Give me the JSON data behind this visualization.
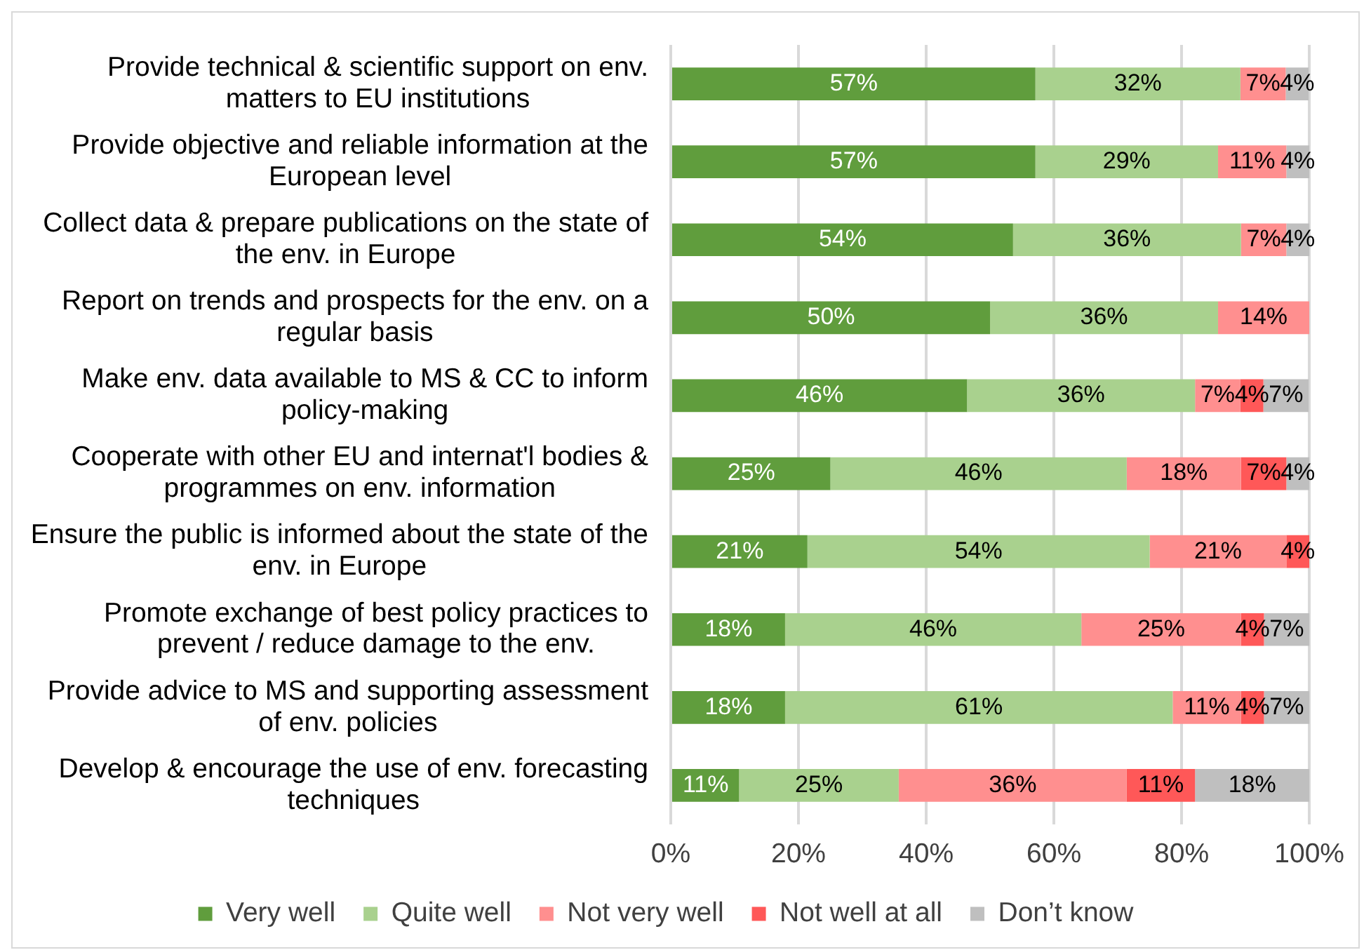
{
  "chart_data": {
    "type": "bar",
    "orientation": "horizontal",
    "stacked": true,
    "categories": [
      "Provide technical & scientific support on env. matters to EU institutions",
      "Provide objective and reliable information at the European level",
      "Collect data & prepare publications on the state of the env. in Europe",
      "Report on trends and prospects for the env. on a regular basis",
      "Make env. data available to MS & CC to inform policy-making",
      "Cooperate with other EU and internat'l bodies & programmes on env. information",
      "Ensure the public is informed about the state of the env. in Europe",
      "Promote exchange of best policy practices to prevent / reduce damage to the env.",
      "Provide advice to MS and supporting assessment of env. policies",
      "Develop & encourage the use of env. forecasting techniques"
    ],
    "series": [
      {
        "name": "Very well",
        "color": "#609d3d",
        "values": [
          57.1,
          57.1,
          53.6,
          50,
          46.4,
          25,
          21.4,
          17.9,
          17.9,
          10.7
        ],
        "value_labels": [
          "57%",
          "57%",
          "54%",
          "50%",
          "46%",
          "25%",
          "21%",
          "18%",
          "18%",
          "11%"
        ]
      },
      {
        "name": "Quite well",
        "color": "#a9d18e",
        "values": [
          32.1,
          28.6,
          35.7,
          35.7,
          35.7,
          46.4,
          53.6,
          46.4,
          60.7,
          25
        ],
        "value_labels": [
          "32%",
          "29%",
          "36%",
          "36%",
          "36%",
          "46%",
          "54%",
          "46%",
          "61%",
          "25%"
        ]
      },
      {
        "name": "Not very well",
        "color": "#ff8f8f",
        "values": [
          7.1,
          10.7,
          7.1,
          14.3,
          7.1,
          17.9,
          21.4,
          25,
          10.7,
          35.7
        ],
        "value_labels": [
          "7%",
          "11%",
          "7%",
          "14%",
          "7%",
          "18%",
          "21%",
          "25%",
          "11%",
          "36%"
        ]
      },
      {
        "name": "Not well at all",
        "color": "#ff5858",
        "values": [
          null,
          null,
          null,
          null,
          3.6,
          7.1,
          3.6,
          3.6,
          3.6,
          10.7
        ],
        "value_labels": [
          null,
          null,
          null,
          null,
          "4%",
          "7%",
          "4%",
          "4%",
          "4%",
          "11%"
        ]
      },
      {
        "name": "Don’t know",
        "color": "#bfbfbf",
        "values": [
          3.6,
          3.6,
          3.6,
          null,
          7.1,
          3.6,
          null,
          7.1,
          7.1,
          17.9
        ],
        "value_labels": [
          "4%",
          "4%",
          "4%",
          null,
          "7%",
          "4%",
          null,
          "7%",
          "7%",
          "18%"
        ]
      }
    ],
    "xlim": [
      0,
      100
    ],
    "xticks": [
      {
        "value": 0,
        "label": "0%"
      },
      {
        "value": 20,
        "label": "20%"
      },
      {
        "value": 40,
        "label": "40%"
      },
      {
        "value": 60,
        "label": "60%"
      },
      {
        "value": 80,
        "label": "80%"
      },
      {
        "value": 100,
        "label": "100%"
      }
    ],
    "grid": "x",
    "legend": "bottom"
  }
}
